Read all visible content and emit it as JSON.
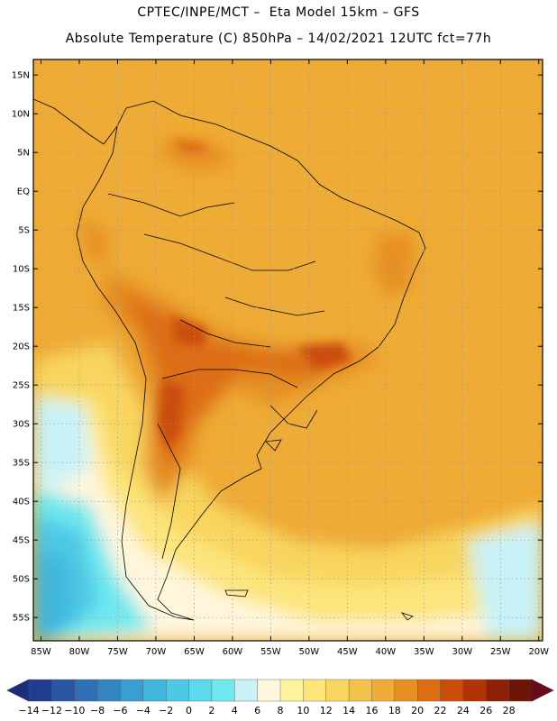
{
  "title_line1": "CPTEC/INPE/MCT –  Eta Model 15km – GFS",
  "title_line2": "Absolute Temperature (C) 850hPa – 14/02/2021 12UTC fct=77h",
  "map": {
    "lon_range": [
      -86,
      -19.5
    ],
    "lat_range": [
      -58,
      17
    ],
    "lat_ticks": [
      {
        "value": 15,
        "label": "15N"
      },
      {
        "value": 10,
        "label": "10N"
      },
      {
        "value": 5,
        "label": "5N"
      },
      {
        "value": 0,
        "label": "EQ"
      },
      {
        "value": -5,
        "label": "5S"
      },
      {
        "value": -10,
        "label": "10S"
      },
      {
        "value": -15,
        "label": "15S"
      },
      {
        "value": -20,
        "label": "20S"
      },
      {
        "value": -25,
        "label": "25S"
      },
      {
        "value": -30,
        "label": "30S"
      },
      {
        "value": -35,
        "label": "35S"
      },
      {
        "value": -40,
        "label": "40S"
      },
      {
        "value": -45,
        "label": "45S"
      },
      {
        "value": -50,
        "label": "50S"
      },
      {
        "value": -55,
        "label": "55S"
      }
    ],
    "lon_ticks": [
      {
        "value": -85,
        "label": "85W"
      },
      {
        "value": -80,
        "label": "80W"
      },
      {
        "value": -75,
        "label": "75W"
      },
      {
        "value": -70,
        "label": "70W"
      },
      {
        "value": -65,
        "label": "65W"
      },
      {
        "value": -60,
        "label": "60W"
      },
      {
        "value": -55,
        "label": "55W"
      },
      {
        "value": -50,
        "label": "50W"
      },
      {
        "value": -45,
        "label": "45W"
      },
      {
        "value": -40,
        "label": "40W"
      },
      {
        "value": -35,
        "label": "35W"
      },
      {
        "value": -30,
        "label": "30W"
      },
      {
        "value": -25,
        "label": "25W"
      },
      {
        "value": -20,
        "label": "20W"
      }
    ]
  },
  "colorbar": {
    "labels": [
      "-14",
      "-12",
      "-10",
      "-8",
      "-6",
      "-4",
      "-2",
      "0",
      "2",
      "4",
      "6",
      "8",
      "10",
      "12",
      "14",
      "16",
      "18",
      "20",
      "22",
      "24",
      "26",
      "28"
    ],
    "colors": [
      "#1f3d8f",
      "#2a55a3",
      "#2f6fb5",
      "#3486c2",
      "#3a9fd0",
      "#41b6dc",
      "#4cc9e4",
      "#5cd9ea",
      "#6ee8ef",
      "#c9f2f7",
      "#fff6dc",
      "#fff39c",
      "#fce57b",
      "#f8d55f",
      "#f3c24a",
      "#eeab35",
      "#e68f22",
      "#dd6d12",
      "#cb4d0a",
      "#b23306",
      "#8f1f05",
      "#6e1505"
    ],
    "low_color": "#1a2f7a",
    "high_color": "#6a0a1a"
  }
}
